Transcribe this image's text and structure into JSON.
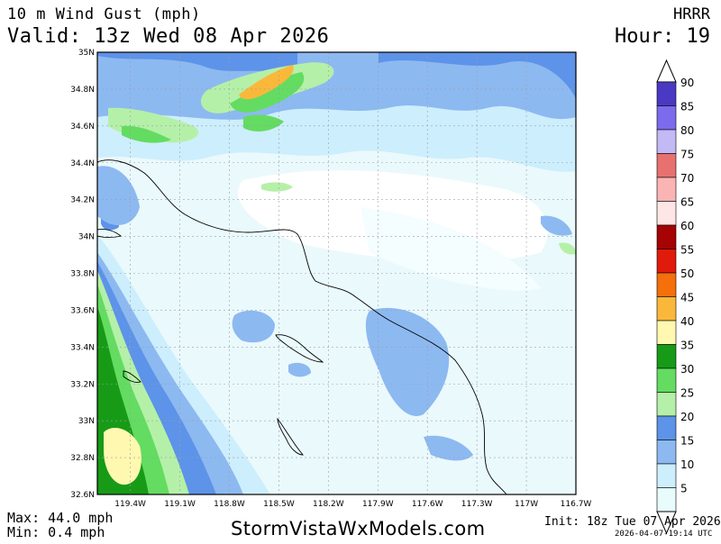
{
  "header": {
    "title": "10 m Wind Gust (mph)",
    "valid": "Valid: 13z Wed 08 Apr 2026",
    "model": "HRRR",
    "hour": "Hour: 19"
  },
  "footer": {
    "max": "Max: 44.0 mph",
    "min": "Min: 0.4 mph",
    "site": "StormVistaWxModels.com",
    "init": "Init: 18z Tue 07 Apr 2026",
    "stamp": "2026-04-07-19:14 UTC"
  },
  "map": {
    "lat_labels": [
      "35N",
      "34.8N",
      "34.6N",
      "34.4N",
      "34.2N",
      "34N",
      "33.8N",
      "33.6N",
      "33.4N",
      "33.2N",
      "33N",
      "32.8N",
      "32.6N"
    ],
    "lon_labels": [
      "119.4W",
      "119.1W",
      "118.8W",
      "118.5W",
      "118.2W",
      "117.9W",
      "117.6W",
      "117.3W",
      "117W",
      "116.7W"
    ],
    "lat_range": [
      32.6,
      35.0
    ],
    "lon_range": [
      -119.6,
      -116.7
    ]
  },
  "legend": {
    "levels": [
      "5",
      "10",
      "15",
      "20",
      "25",
      "30",
      "35",
      "40",
      "45",
      "50",
      "55",
      "60",
      "65",
      "70",
      "75",
      "80",
      "85",
      "90"
    ],
    "colors": [
      "#e8fbfd",
      "#cdeefc",
      "#8db9f1",
      "#5d93e8",
      "#b5f0a8",
      "#63dc61",
      "#179b17",
      "#fff8b0",
      "#fab83b",
      "#f56f0b",
      "#e11b0c",
      "#a60303",
      "#ffe6e6",
      "#fbb4b4",
      "#e7716f",
      "#c3b9f4",
      "#7c6bec",
      "#4a39c2"
    ]
  }
}
